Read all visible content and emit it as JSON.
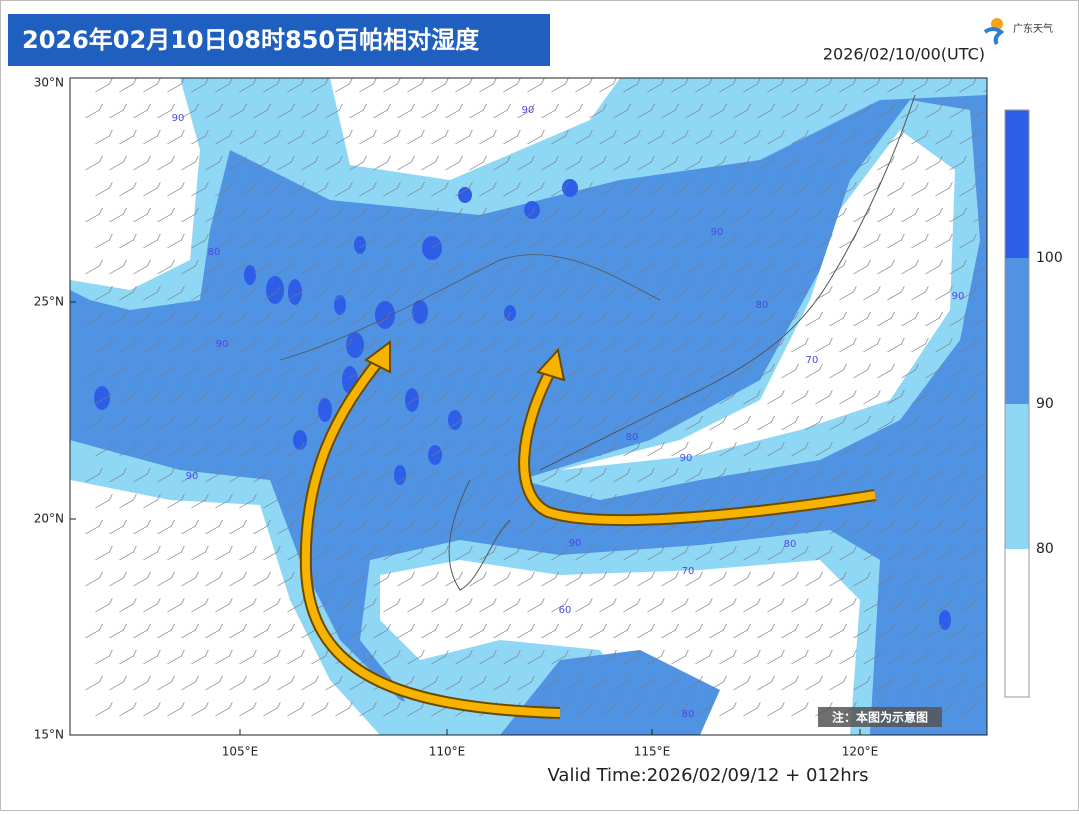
{
  "header": {
    "title": "2026年02月10日08时850百帕相对湿度",
    "logo_text": "广东天气",
    "init_time": "2026/02/10/00(UTC)"
  },
  "map": {
    "lat_labels": [
      "30°N",
      "25°N",
      "20°N",
      "15°N"
    ],
    "lon_labels": [
      "105°E",
      "110°E",
      "115°E",
      "120°E"
    ],
    "contour_labels": [
      "90",
      "90",
      "90",
      "90",
      "80",
      "90",
      "90",
      "80",
      "70",
      "80",
      "90",
      "70",
      "60",
      "80",
      "80",
      "90"
    ],
    "note": "注：本图为示意图",
    "valid_time": "Valid Time:2026/02/09/12 + 012hrs"
  },
  "colorbar": {
    "labels": [
      "100",
      "90",
      "80"
    ]
  }
}
